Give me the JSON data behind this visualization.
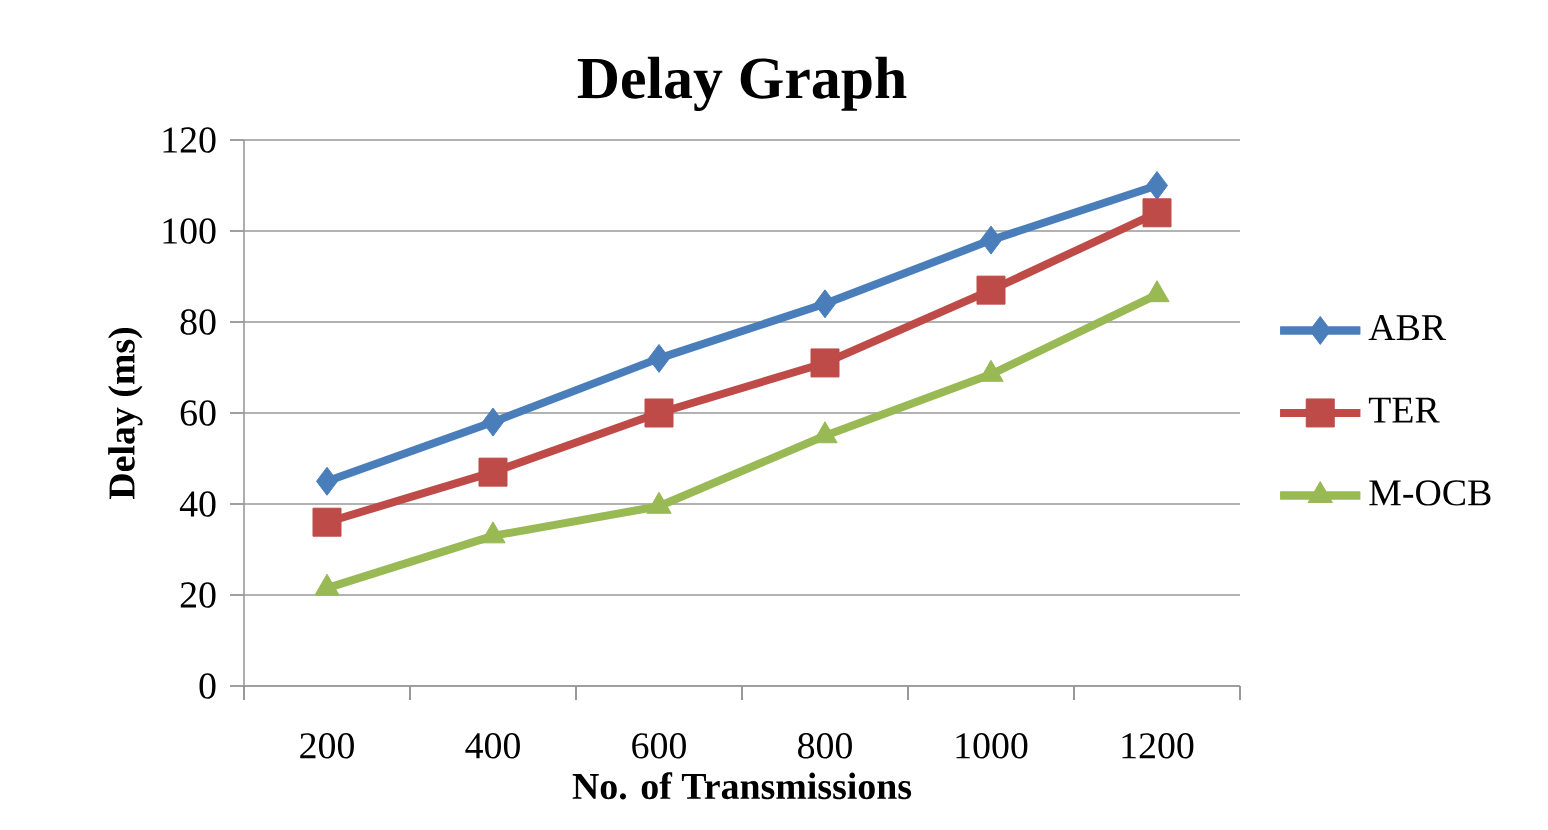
{
  "chart_data": {
    "type": "line",
    "title": "Delay Graph",
    "xlabel": "No. of Transmissions",
    "ylabel": "Delay (ms)",
    "categories": [
      "200",
      "400",
      "600",
      "800",
      "1000",
      "1200"
    ],
    "series": [
      {
        "name": "ABR",
        "color": "#4a7ebb",
        "marker": "diamond",
        "values": [
          45,
          58,
          72,
          84,
          98,
          110
        ]
      },
      {
        "name": "TER",
        "color": "#be4b48",
        "marker": "square",
        "values": [
          36,
          47,
          60,
          71,
          87,
          104
        ]
      },
      {
        "name": "M-OCB",
        "color": "#98b954",
        "marker": "triangle",
        "values": [
          21.5,
          33,
          39.5,
          55,
          68.5,
          86
        ]
      }
    ],
    "ylim": [
      0,
      120
    ],
    "yticks": [
      0,
      20,
      40,
      60,
      80,
      100,
      120
    ],
    "grid": "y",
    "legend": "right",
    "line_style": "solid"
  }
}
